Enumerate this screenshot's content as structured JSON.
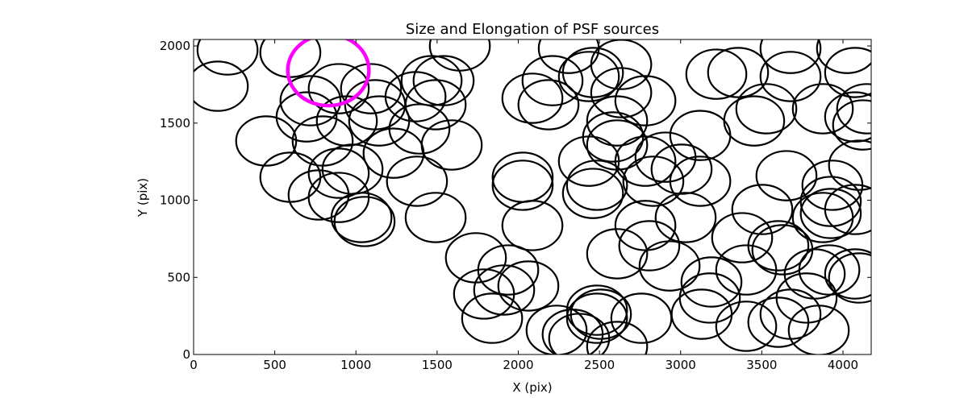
{
  "chart_data": {
    "type": "scatter",
    "marker": "ellipse",
    "title": "Size and Elongation of PSF sources",
    "xlabel": "X (pix)",
    "ylabel": "Y (pix)",
    "xlim": [
      0,
      4174
    ],
    "ylim": [
      0,
      2042
    ],
    "xticks": [
      0,
      500,
      1000,
      1500,
      2000,
      2500,
      3000,
      3500,
      4000
    ],
    "yticks": [
      0,
      500,
      1000,
      1500,
      2000
    ],
    "xtick_labels": [
      "0",
      "500",
      "1000",
      "1500",
      "2000",
      "2500",
      "3000",
      "3500",
      "4000"
    ],
    "ytick_labels": [
      "0",
      "500",
      "1000",
      "1500",
      "2000"
    ],
    "grid": false,
    "ellipse_semi_axes": [
      185,
      160
    ],
    "edge_color": "#000000",
    "sources": [
      [
        149,
        1739
      ],
      [
        209,
        1974
      ],
      [
        596,
        1958
      ],
      [
        720,
        1645
      ],
      [
        696,
        1540
      ],
      [
        894,
        1723
      ],
      [
        1093,
        1723
      ],
      [
        1118,
        1619
      ],
      [
        944,
        1514
      ],
      [
        795,
        1384
      ],
      [
        447,
        1384
      ],
      [
        596,
        1149
      ],
      [
        770,
        1034
      ],
      [
        894,
        1175
      ],
      [
        979,
        1201
      ],
      [
        894,
        1018
      ],
      [
        1034,
        888
      ],
      [
        1053,
        862
      ],
      [
        1143,
        1514
      ],
      [
        1232,
        1305
      ],
      [
        1376,
        1123
      ],
      [
        1367,
        1671
      ],
      [
        1466,
        1775
      ],
      [
        1491,
        1619
      ],
      [
        1540,
        1775
      ],
      [
        1391,
        1462
      ],
      [
        1590,
        1358
      ],
      [
        1491,
        888
      ],
      [
        1640,
        2000
      ],
      [
        1739,
        627
      ],
      [
        1789,
        392
      ],
      [
        1839,
        235
      ],
      [
        1938,
        548
      ],
      [
        1913,
        418
      ],
      [
        2062,
        444
      ],
      [
        2087,
        836
      ],
      [
        2027,
        1149
      ],
      [
        2027,
        1097
      ],
      [
        2186,
        1619
      ],
      [
        2211,
        1775
      ],
      [
        2311,
        1984
      ],
      [
        2460,
        1828
      ],
      [
        2435,
        1802
      ],
      [
        2634,
        1880
      ],
      [
        2634,
        1697
      ],
      [
        2783,
        1645
      ],
      [
        2609,
        1514
      ],
      [
        2584,
        1410
      ],
      [
        2609,
        1358
      ],
      [
        2435,
        1253
      ],
      [
        2485,
        1097
      ],
      [
        2460,
        1044
      ],
      [
        2783,
        1253
      ],
      [
        2832,
        1123
      ],
      [
        2907,
        1279
      ],
      [
        3006,
        1201
      ],
      [
        3121,
        1123
      ],
      [
        2783,
        836
      ],
      [
        2807,
        705
      ],
      [
        2932,
        574
      ],
      [
        3031,
        888
      ],
      [
        2609,
        653
      ],
      [
        2509,
        261
      ],
      [
        2485,
        287
      ],
      [
        2758,
        235
      ],
      [
        2609,
        52
      ],
      [
        2335,
        131
      ],
      [
        3130,
        261
      ],
      [
        3180,
        366
      ],
      [
        3190,
        470
      ],
      [
        3404,
        548
      ],
      [
        3379,
        757
      ],
      [
        3503,
        940
      ],
      [
        3652,
        1159
      ],
      [
        3627,
        679
      ],
      [
        3602,
        705
      ],
      [
        3677,
        1984
      ],
      [
        4025,
        1984
      ],
      [
        4075,
        1828
      ],
      [
        3220,
        1817
      ],
      [
        3354,
        1828
      ],
      [
        3677,
        1802
      ],
      [
        3876,
        1593
      ],
      [
        3528,
        1593
      ],
      [
        3453,
        1514
      ],
      [
        3121,
        1420
      ],
      [
        4075,
        1540
      ],
      [
        4124,
        1488
      ],
      [
        4149,
        1593
      ],
      [
        4099,
        1227
      ],
      [
        3935,
        1097
      ],
      [
        3925,
        992
      ],
      [
        3925,
        914
      ],
      [
        4075,
        940
      ],
      [
        3876,
        888
      ],
      [
        3826,
        522
      ],
      [
        3916,
        548
      ],
      [
        4075,
        522
      ],
      [
        4099,
        496
      ],
      [
        3404,
        183
      ],
      [
        3602,
        209
      ],
      [
        3677,
        261
      ],
      [
        3851,
        157
      ],
      [
        3776,
        366
      ],
      [
        2236,
        157
      ],
      [
        2485,
        235
      ],
      [
        2375,
        104
      ],
      [
        2087,
        1661
      ]
    ],
    "highlight": {
      "x": 830,
      "y": 1843,
      "semi_axes": [
        250,
        230
      ],
      "color": "#ff00ff"
    }
  }
}
